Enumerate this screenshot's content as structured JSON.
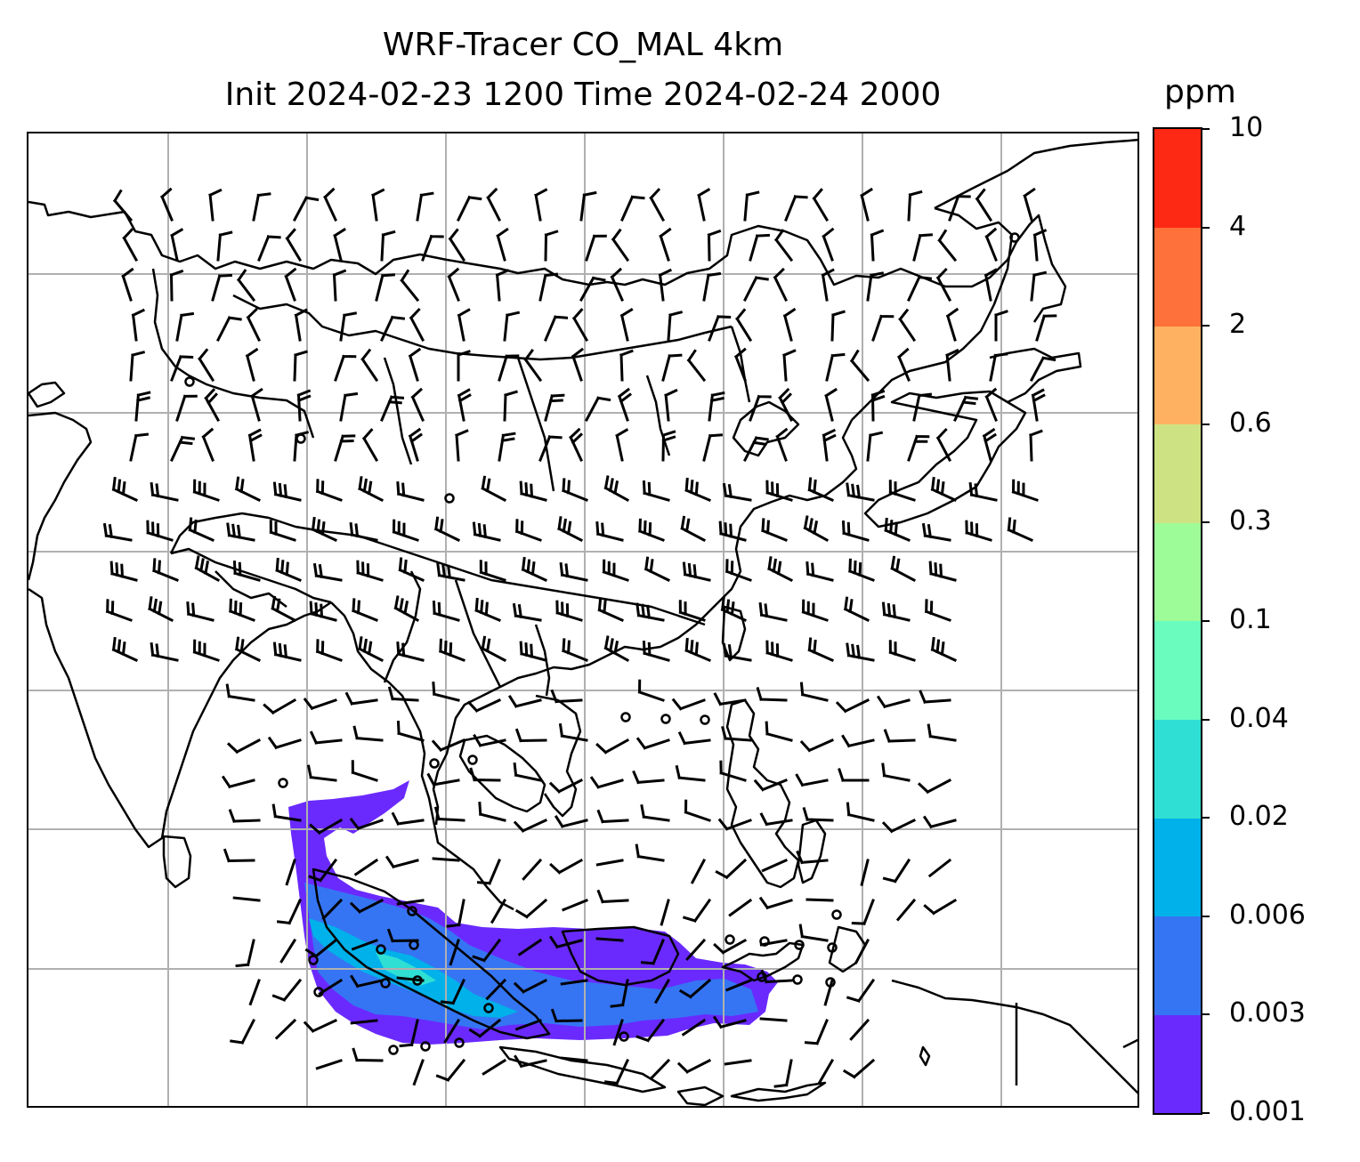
{
  "title": {
    "line1": "WRF-Tracer CO_MAL 4km",
    "line2": "Init 2024-02-23 1200 Time 2024-02-24 2000"
  },
  "colorbar": {
    "unit": "ppm",
    "levels": [
      "0.001",
      "0.003",
      "0.006",
      "0.02",
      "0.04",
      "0.1",
      "0.3",
      "0.6",
      "2",
      "4",
      "10"
    ],
    "colors": [
      "#6a2afe",
      "#3575f3",
      "#00b1ea",
      "#2fdfd4",
      "#6afcbe",
      "#9efc98",
      "#cde383",
      "#feb261",
      "#fe713a",
      "#fe2915"
    ]
  },
  "map": {
    "grid": "on",
    "grid_color": "#b0b0b0",
    "coastline_color": "#000000",
    "wind_barb_color": "#000000",
    "layers": [
      "coastlines",
      "country borders",
      "wind barbs",
      "CO_MAL tracer shading"
    ]
  }
}
